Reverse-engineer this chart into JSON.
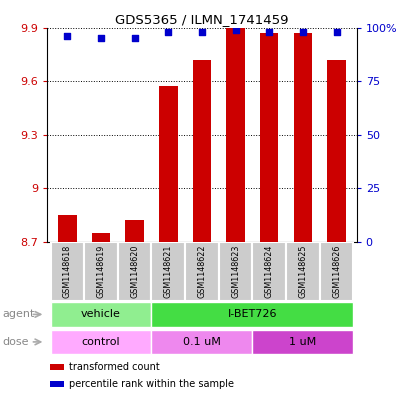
{
  "title": "GDS5365 / ILMN_1741459",
  "samples": [
    "GSM1148618",
    "GSM1148619",
    "GSM1148620",
    "GSM1148621",
    "GSM1148622",
    "GSM1148623",
    "GSM1148624",
    "GSM1148625",
    "GSM1148626"
  ],
  "bar_values": [
    8.85,
    8.75,
    8.82,
    9.57,
    9.72,
    9.9,
    9.87,
    9.87,
    9.72
  ],
  "percentile_values": [
    96,
    95,
    95,
    98,
    98,
    99,
    98,
    98,
    98
  ],
  "bar_color": "#cc0000",
  "dot_color": "#0000cc",
  "ylim_left": [
    8.7,
    9.9
  ],
  "yticks_left": [
    8.7,
    9.0,
    9.3,
    9.6,
    9.9
  ],
  "ytick_labels_left": [
    "8.7",
    "9",
    "9.3",
    "9.6",
    "9.9"
  ],
  "ylim_right": [
    0,
    100
  ],
  "yticks_right": [
    0,
    25,
    50,
    75,
    100
  ],
  "ytick_labels_right": [
    "0",
    "25",
    "50",
    "75",
    "100%"
  ],
  "agent_groups": [
    {
      "label": "vehicle",
      "start": 0,
      "end": 3,
      "color": "#90ee90"
    },
    {
      "label": "I-BET726",
      "start": 3,
      "end": 9,
      "color": "#44dd44"
    }
  ],
  "dose_groups": [
    {
      "label": "control",
      "start": 0,
      "end": 3,
      "color": "#ffaaff"
    },
    {
      "label": "0.1 uM",
      "start": 3,
      "end": 6,
      "color": "#ee88ee"
    },
    {
      "label": "1 uM",
      "start": 6,
      "end": 9,
      "color": "#cc44cc"
    }
  ],
  "legend_items": [
    {
      "label": "transformed count",
      "color": "#cc0000"
    },
    {
      "label": "percentile rank within the sample",
      "color": "#0000cc"
    }
  ],
  "bar_width": 0.55,
  "label_agent": "agent",
  "label_dose": "dose",
  "sample_box_color": "#cccccc",
  "sample_box_edge": "#ffffff"
}
